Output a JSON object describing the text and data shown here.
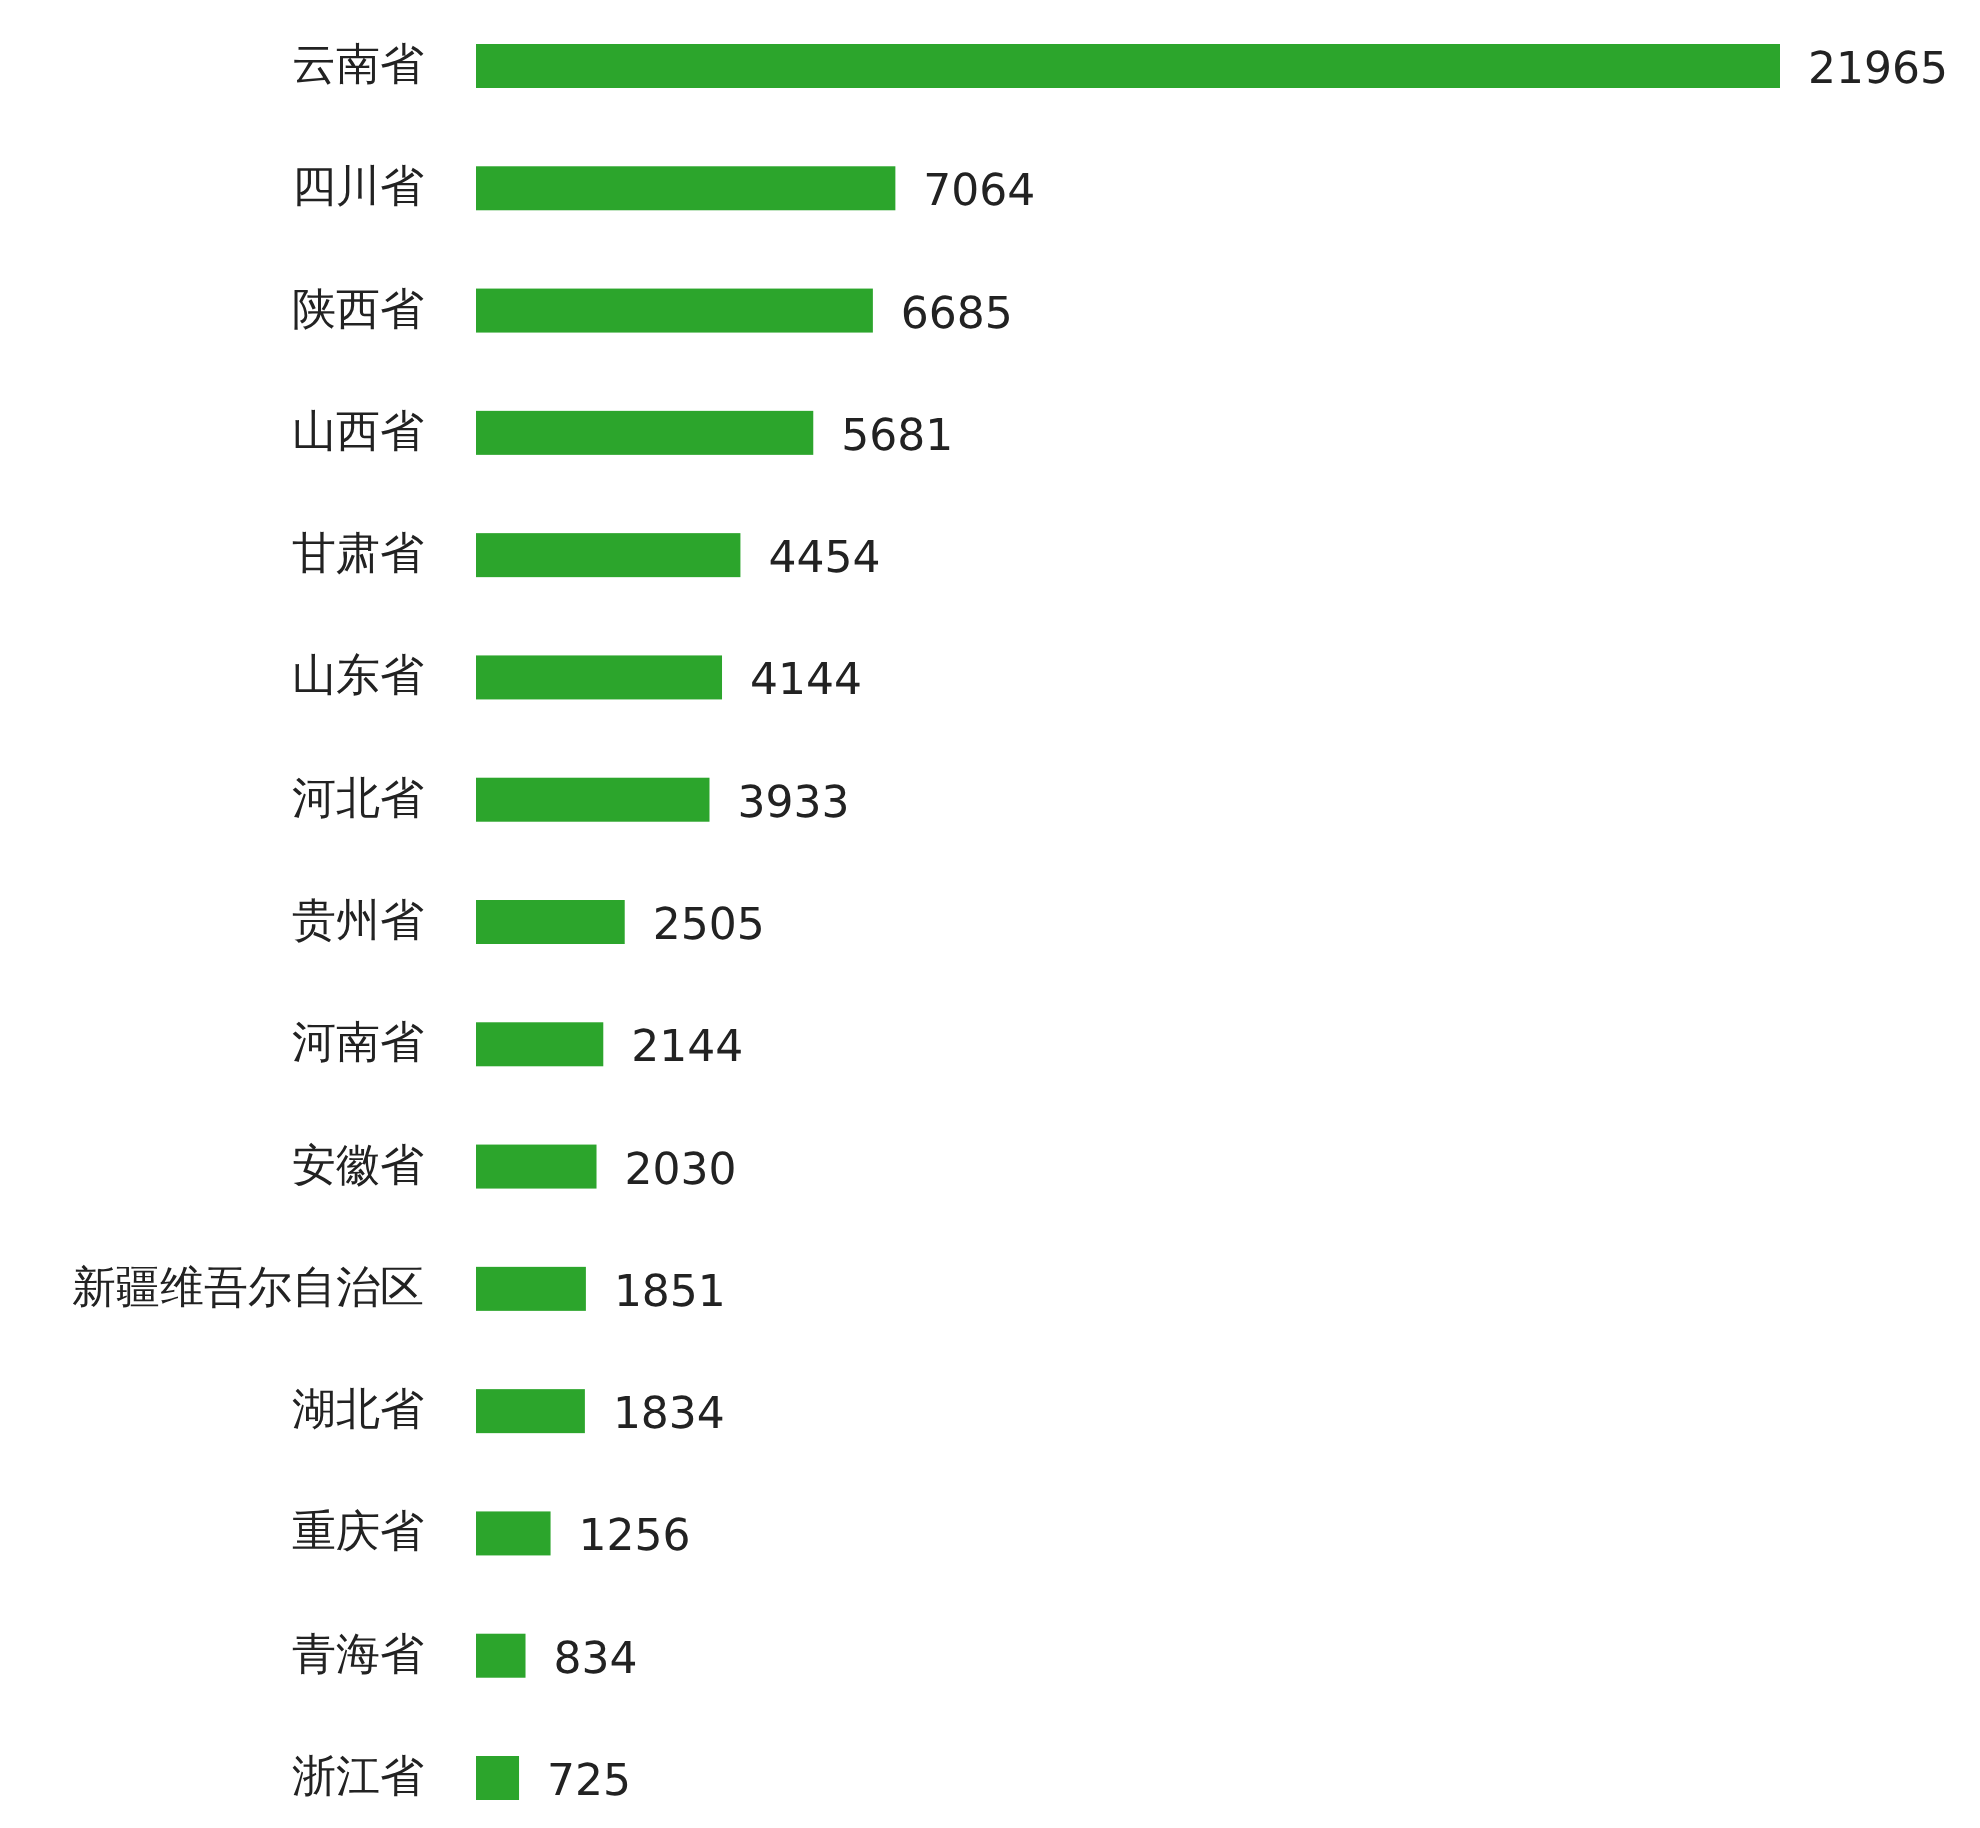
{
  "chart_data": {
    "type": "bar",
    "orientation": "horizontal",
    "color": "#2ca52c",
    "data_labels": true,
    "categories": [
      "云南省",
      "四川省",
      "陕西省",
      "山西省",
      "甘肃省",
      "山东省",
      "河北省",
      "贵州省",
      "河南省",
      "安徽省",
      "新疆维吾尔自治区",
      "湖北省",
      "重庆省",
      "青海省",
      "浙江省"
    ],
    "values": [
      21965,
      7064,
      6685,
      5681,
      4454,
      4144,
      3933,
      2505,
      2144,
      2030,
      1851,
      1834,
      1256,
      834,
      725
    ]
  }
}
